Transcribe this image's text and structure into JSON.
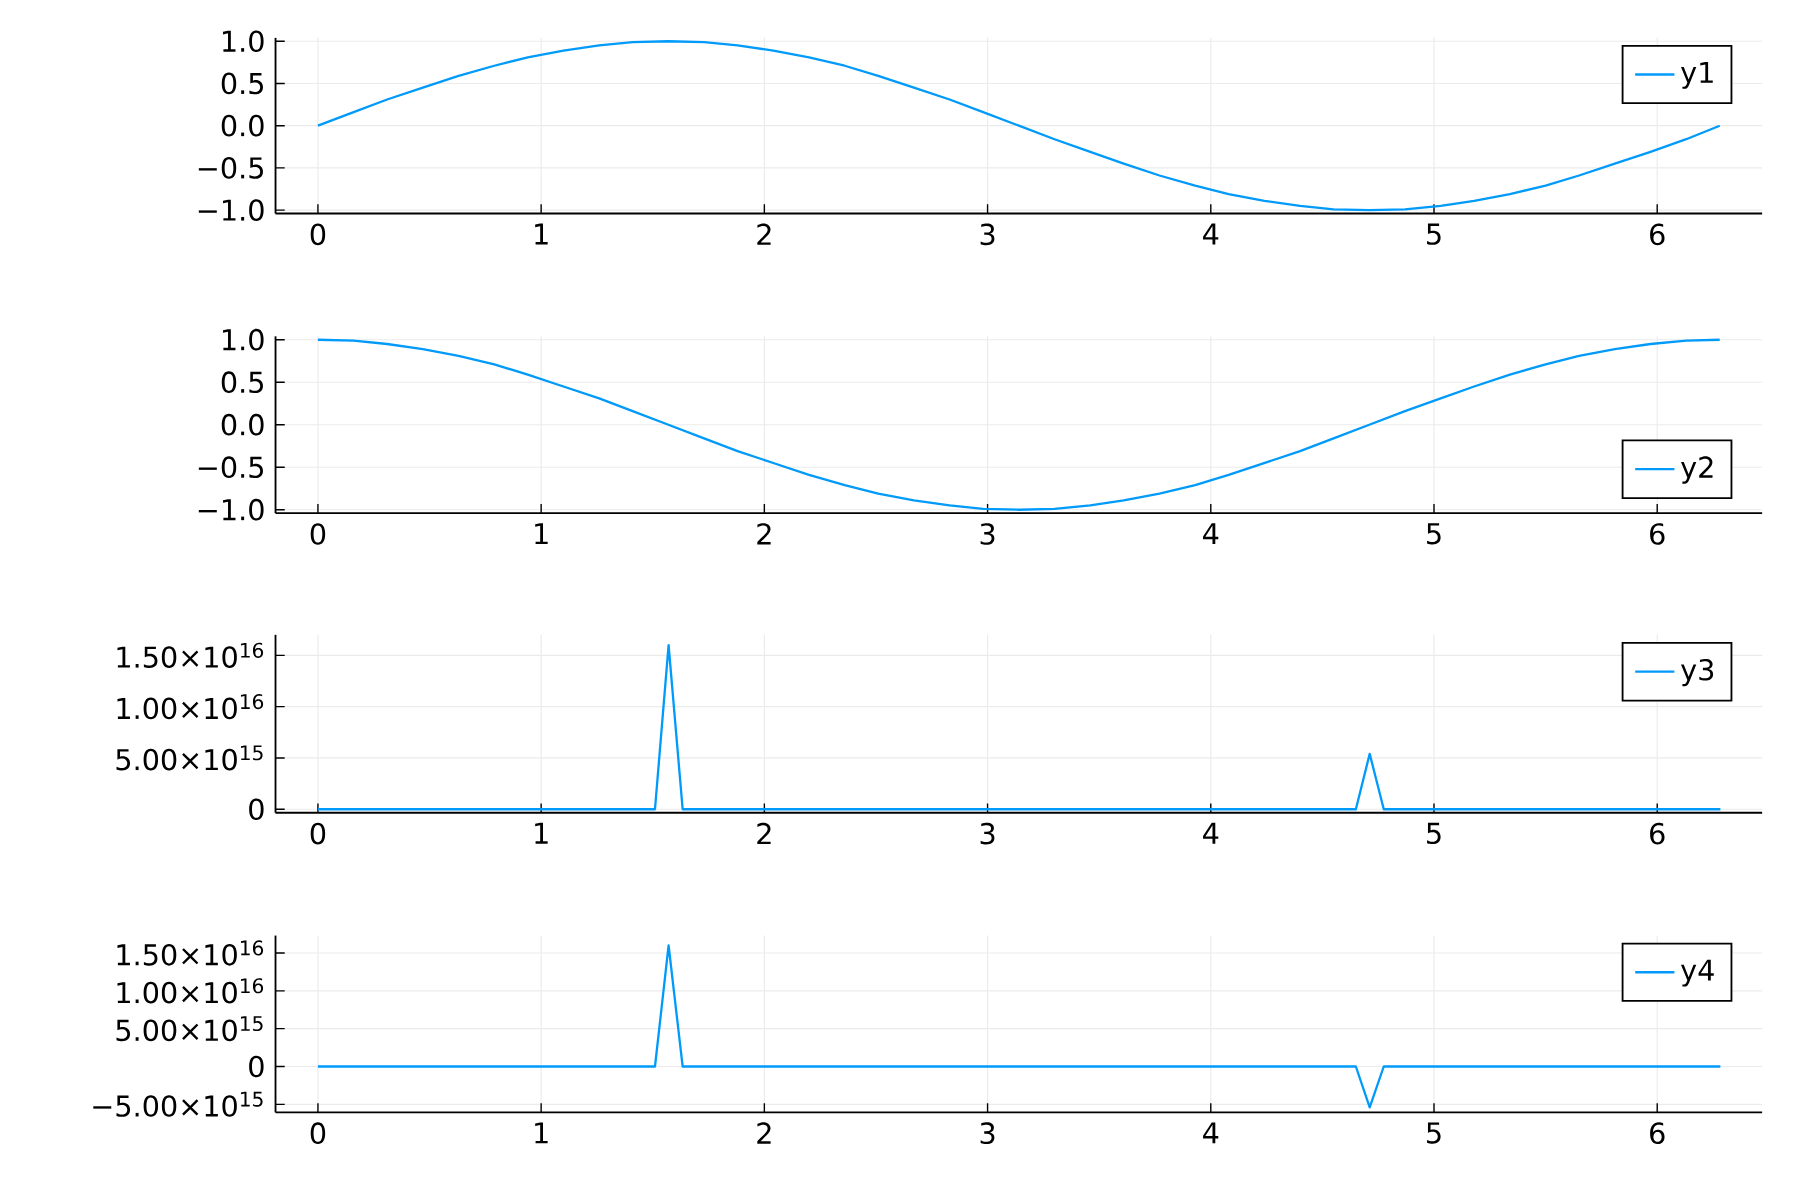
{
  "chart_data": [
    {
      "type": "line",
      "x": [
        0,
        0.16,
        0.31,
        0.47,
        0.63,
        0.79,
        0.94,
        1.1,
        1.26,
        1.41,
        1.57,
        1.73,
        1.88,
        2.04,
        2.2,
        2.36,
        2.51,
        2.67,
        2.83,
        2.98,
        3.14,
        3.3,
        3.46,
        3.61,
        3.77,
        3.93,
        4.08,
        4.24,
        4.4,
        4.55,
        4.71,
        4.87,
        5.03,
        5.18,
        5.34,
        5.5,
        5.65,
        5.81,
        5.97,
        6.13,
        6.28
      ],
      "series": [
        {
          "name": "y1",
          "color": "#009afa",
          "values": [
            0,
            0.16,
            0.31,
            0.45,
            0.59,
            0.71,
            0.81,
            0.89,
            0.95,
            0.99,
            1,
            0.99,
            0.95,
            0.89,
            0.81,
            0.71,
            0.59,
            0.45,
            0.31,
            0.16,
            0,
            -0.16,
            -0.31,
            -0.45,
            -0.59,
            -0.71,
            -0.81,
            -0.89,
            -0.95,
            -0.99,
            -1,
            -0.99,
            -0.95,
            -0.89,
            -0.81,
            -0.71,
            -0.59,
            -0.45,
            -0.31,
            -0.16,
            0
          ]
        }
      ],
      "xlim": [
        -0.19,
        6.47
      ],
      "ylim": [
        -1.04,
        1.04
      ],
      "xticks": [
        0,
        1,
        2,
        3,
        4,
        5,
        6
      ],
      "yticks": [
        {
          "value": -1,
          "label": "−1.0"
        },
        {
          "value": -0.5,
          "label": "−0.5"
        },
        {
          "value": 0,
          "label": "0.0"
        },
        {
          "value": 0.5,
          "label": "0.5"
        },
        {
          "value": 1,
          "label": "1.0"
        }
      ],
      "grid": true,
      "legend": "top right"
    },
    {
      "type": "line",
      "x": [
        0,
        0.16,
        0.31,
        0.47,
        0.63,
        0.79,
        0.94,
        1.1,
        1.26,
        1.41,
        1.57,
        1.73,
        1.88,
        2.04,
        2.2,
        2.36,
        2.51,
        2.67,
        2.83,
        2.98,
        3.14,
        3.3,
        3.46,
        3.61,
        3.77,
        3.93,
        4.08,
        4.24,
        4.4,
        4.55,
        4.71,
        4.87,
        5.03,
        5.18,
        5.34,
        5.5,
        5.65,
        5.81,
        5.97,
        6.13,
        6.28
      ],
      "series": [
        {
          "name": "y2",
          "color": "#009afa",
          "values": [
            1,
            0.99,
            0.95,
            0.89,
            0.81,
            0.71,
            0.59,
            0.45,
            0.31,
            0.16,
            0,
            -0.16,
            -0.31,
            -0.45,
            -0.59,
            -0.71,
            -0.81,
            -0.89,
            -0.95,
            -0.99,
            -1,
            -0.99,
            -0.95,
            -0.89,
            -0.81,
            -0.71,
            -0.59,
            -0.45,
            -0.31,
            -0.16,
            0,
            0.16,
            0.31,
            0.45,
            0.59,
            0.71,
            0.81,
            0.89,
            0.95,
            0.99,
            1
          ]
        }
      ],
      "xlim": [
        -0.19,
        6.47
      ],
      "ylim": [
        -1.04,
        1.04
      ],
      "xticks": [
        0,
        1,
        2,
        3,
        4,
        5,
        6
      ],
      "yticks": [
        {
          "value": -1,
          "label": "−1.0"
        },
        {
          "value": -0.5,
          "label": "−0.5"
        },
        {
          "value": 0,
          "label": "0.0"
        },
        {
          "value": 0.5,
          "label": "0.5"
        },
        {
          "value": 1,
          "label": "1.0"
        }
      ],
      "grid": true,
      "legend": "bottom right"
    },
    {
      "type": "line",
      "x": [
        0,
        1.51,
        1.571,
        1.634,
        4.65,
        4.712,
        4.775,
        6.283
      ],
      "series": [
        {
          "name": "y3",
          "color": "#009afa",
          "values": [
            0,
            0,
            1.6e+16,
            0,
            0,
            5400000000000000.0,
            0,
            0
          ]
        }
      ],
      "xlim": [
        -0.19,
        6.47
      ],
      "ylim": [
        -340000000000000.0,
        1.7e+16
      ],
      "xticks": [
        0,
        1,
        2,
        3,
        4,
        5,
        6
      ],
      "yticks": [
        0,
        {
          "value": 5000000000000000.0,
          "label": "5.00×10$^{15}$"
        },
        {
          "value": 1e+16,
          "label": "1.00×10$^{16}$"
        },
        {
          "value": 1.5e+16,
          "label": "1.50×10$^{16}$"
        }
      ],
      "grid": true,
      "legend": "top right"
    },
    {
      "type": "line",
      "x": [
        0,
        1.51,
        1.571,
        1.634,
        4.65,
        4.712,
        4.775,
        6.283
      ],
      "series": [
        {
          "name": "y4",
          "color": "#009afa",
          "values": [
            0,
            0,
            1.6e+16,
            0,
            0,
            -5400000000000000.0,
            0,
            0
          ]
        }
      ],
      "xlim": [
        -0.19,
        6.47
      ],
      "ylim": [
        -6060000000000000.0,
        1.73e+16
      ],
      "xticks": [
        0,
        1,
        2,
        3,
        4,
        5,
        6
      ],
      "yticks": [
        {
          "value": -5000000000000000.0,
          "label": "−5.00×10$^{15}$"
        },
        0,
        {
          "value": 5000000000000000.0,
          "label": "5.00×10$^{15}$"
        },
        {
          "value": 1e+16,
          "label": "1.00×10$^{16}$"
        },
        {
          "value": 1.5e+16,
          "label": "1.50×10$^{16}$"
        }
      ],
      "grid": true,
      "legend": "top right"
    }
  ]
}
